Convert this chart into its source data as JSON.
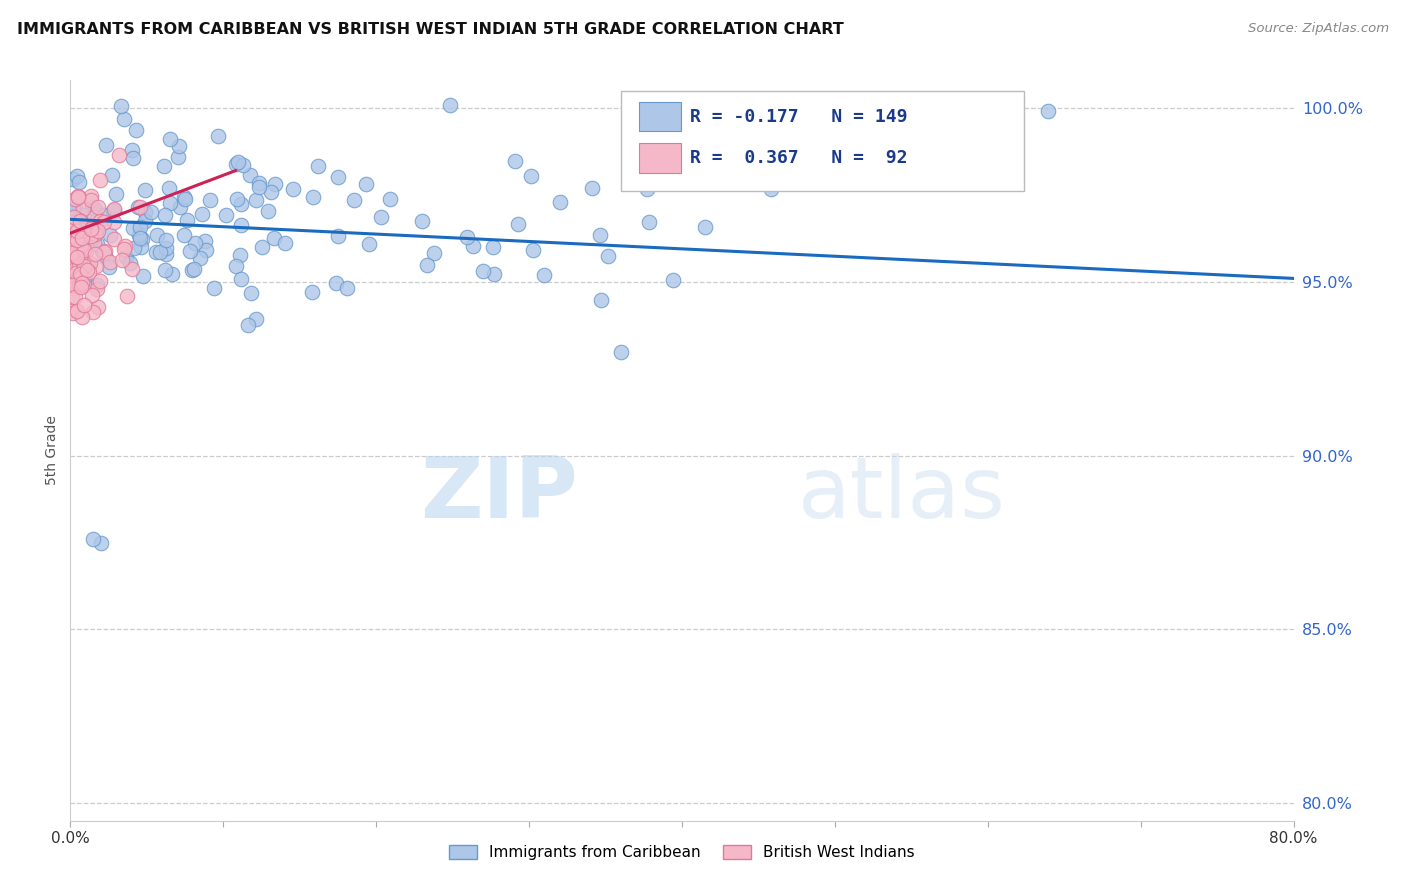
{
  "title": "IMMIGRANTS FROM CARIBBEAN VS BRITISH WEST INDIAN 5TH GRADE CORRELATION CHART",
  "source": "Source: ZipAtlas.com",
  "ylabel": "5th Grade",
  "x_min": 0.0,
  "x_max": 0.8,
  "y_min": 0.795,
  "y_max": 1.008,
  "y_ticks": [
    0.8,
    0.85,
    0.9,
    0.95,
    1.0
  ],
  "y_tick_labels": [
    "80.0%",
    "85.0%",
    "90.0%",
    "95.0%",
    "100.0%"
  ],
  "x_ticks": [
    0.0,
    0.1,
    0.2,
    0.3,
    0.4,
    0.5,
    0.6,
    0.7,
    0.8
  ],
  "x_tick_labels": [
    "0.0%",
    "",
    "",
    "",
    "",
    "",
    "",
    "",
    "80.0%"
  ],
  "blue_color": "#aec6e8",
  "blue_edge_color": "#6699cc",
  "pink_color": "#f5b8c8",
  "pink_edge_color": "#e07898",
  "blue_line_color": "#1a6bbf",
  "pink_line_color": "#cc2255",
  "R_blue": -0.177,
  "N_blue": 149,
  "R_pink": 0.367,
  "N_pink": 92,
  "watermark_zip": "ZIP",
  "watermark_atlas": "atlas",
  "legend_label_blue": "Immigrants from Caribbean",
  "legend_label_pink": "British West Indians",
  "blue_trend_x0": 0.0,
  "blue_trend_y0": 0.968,
  "blue_trend_x1": 0.8,
  "blue_trend_y1": 0.951,
  "pink_trend_x0": 0.0,
  "pink_trend_y0": 0.964,
  "pink_trend_x1": 0.108,
  "pink_trend_y1": 0.982
}
